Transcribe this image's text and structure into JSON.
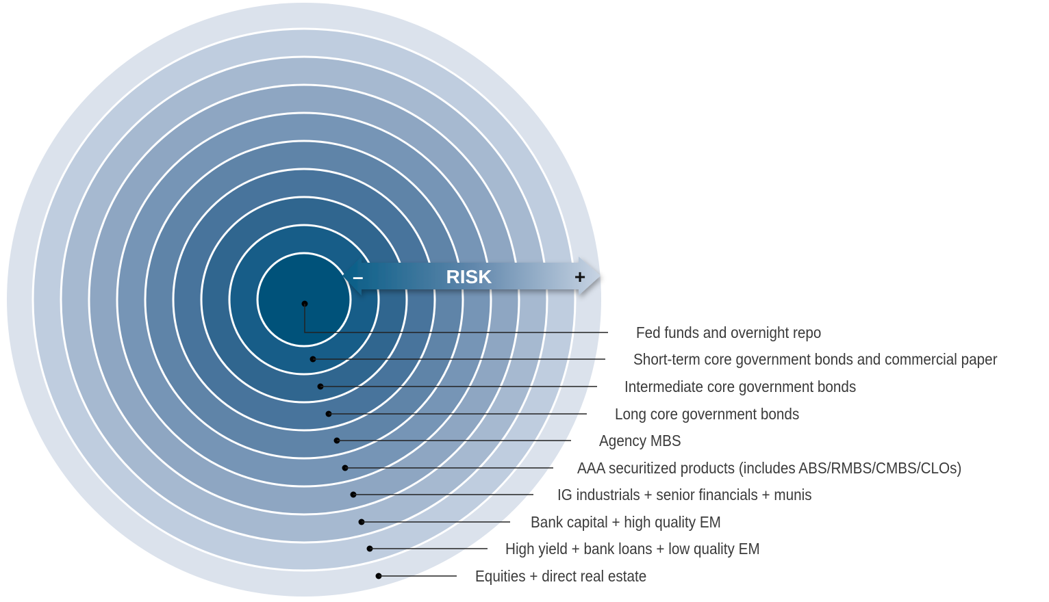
{
  "arrow": {
    "label": "RISK",
    "minus": "–",
    "plus": "+"
  },
  "ring_colors": [
    "#dbe2ec",
    "#bfcddf",
    "#a6b9d0",
    "#8ea6c2",
    "#7695b6",
    "#5f84a8",
    "#48749c",
    "#30668f",
    "#175d88",
    "#085d86",
    "#00527a"
  ],
  "labels": [
    "Fed funds and overnight repo",
    "Short-term core government bonds and commercial paper",
    "Intermediate core government bonds",
    "Long core government bonds",
    "Agency MBS",
    "AAA securitized products (includes ABS/RMBS/CMBS/CLOs)",
    "IG industrials + senior financials + munis",
    "Bank capital + high quality EM",
    "High yield + bank loans + low quality EM",
    "Equities + direct real estate"
  ]
}
